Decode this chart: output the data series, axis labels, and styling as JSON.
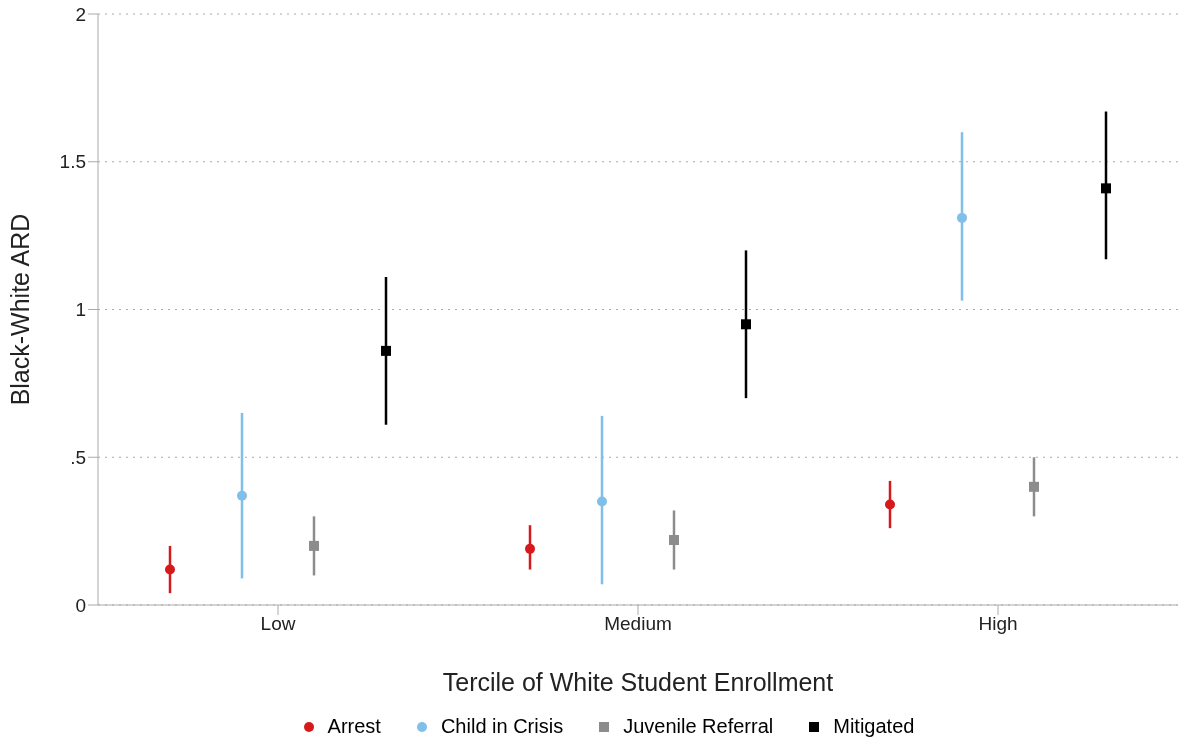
{
  "chart_data": {
    "type": "scatter",
    "xlabel": "Tercile of White Student Enrollment",
    "ylabel": "Black-White ARD",
    "categories": [
      "Low",
      "Medium",
      "High"
    ],
    "ylim": [
      0,
      2
    ],
    "yticks": [
      0,
      {
        "value": 0.5,
        "label": ".5"
      },
      1,
      1.5,
      2
    ],
    "grid": "y",
    "legend": "bottom",
    "series": [
      {
        "name": "Arrest",
        "color": "#d7191c",
        "marker": "circle",
        "values": [
          0.12,
          0.19,
          0.34
        ],
        "errors": [
          [
            0.04,
            0.2
          ],
          [
            0.12,
            0.27
          ],
          [
            0.26,
            0.42
          ]
        ]
      },
      {
        "name": "Child in Crisis",
        "color": "#7fbfe9",
        "marker": "circle",
        "values": [
          0.37,
          0.35,
          1.31
        ],
        "errors": [
          [
            0.09,
            0.65
          ],
          [
            0.07,
            0.64
          ],
          [
            1.03,
            1.6
          ]
        ]
      },
      {
        "name": "Juvenile Referral",
        "color": "#8c8c8c",
        "marker": "square",
        "values": [
          0.2,
          0.22,
          0.4
        ],
        "errors": [
          [
            0.1,
            0.3
          ],
          [
            0.12,
            0.32
          ],
          [
            0.3,
            0.5
          ]
        ]
      },
      {
        "name": "Mitigated",
        "color": "#000000",
        "marker": "square",
        "values": [
          0.86,
          0.95,
          1.41
        ],
        "errors": [
          [
            0.61,
            1.11
          ],
          [
            0.7,
            1.2
          ],
          [
            1.17,
            1.67
          ]
        ]
      }
    ]
  }
}
